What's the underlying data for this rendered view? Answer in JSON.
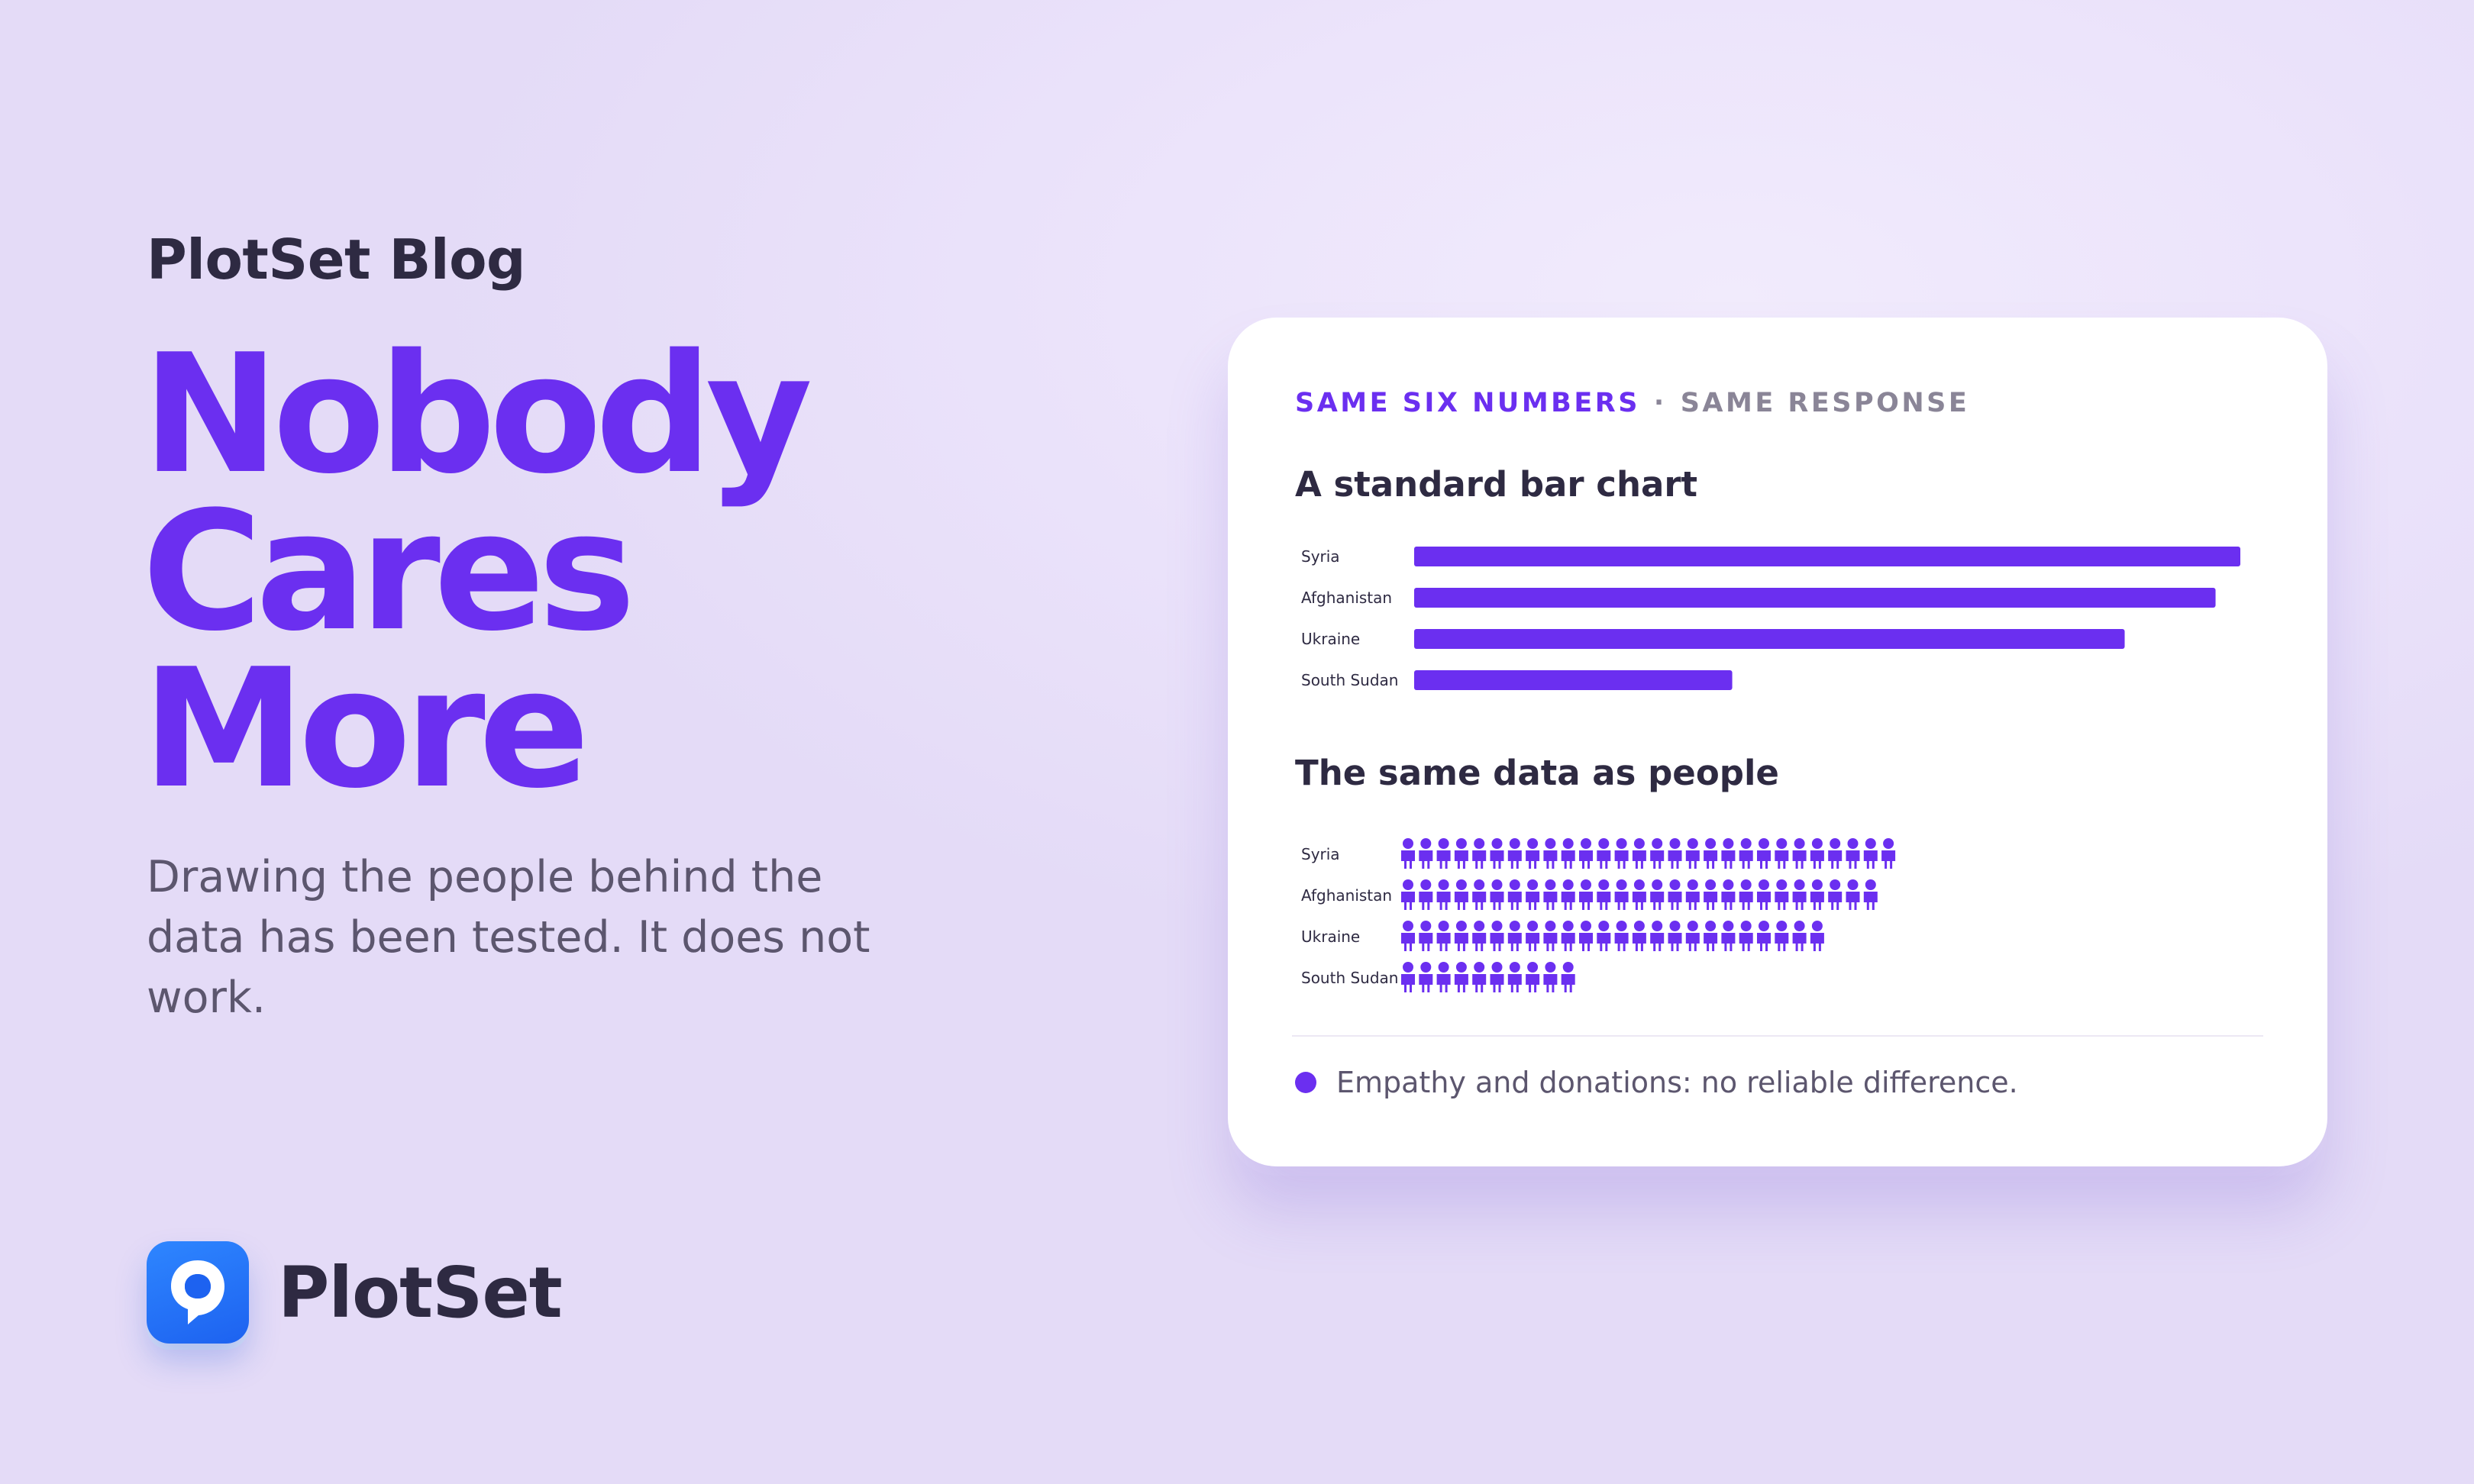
{
  "blog_label": "PlotSet Blog",
  "headline": [
    "Nobody",
    "Cares",
    "More"
  ],
  "subtitle": "Drawing the people behind the data has been tested. It does not work.",
  "brand": {
    "name": "PlotSet",
    "logo_icon": "plotset-logo-icon"
  },
  "card": {
    "eyebrow_a": "SAME SIX NUMBERS",
    "eyebrow_sep": "·",
    "eyebrow_b": "SAME RESPONSE",
    "footnote": "Empathy and donations: no reliable difference."
  },
  "colors": {
    "accent": "#6b2ff0",
    "text": "#2e2a42",
    "muted": "#5c566e",
    "brand_blue": "#1d62f0"
  },
  "chart_data": [
    {
      "type": "bar",
      "title": "A standard bar chart",
      "orientation": "horizontal",
      "categories": [
        "Syria",
        "Afghanistan",
        "Ukraine",
        "South Sudan"
      ],
      "values": [
        100,
        97,
        86,
        38.5
      ],
      "xlim": [
        0,
        100
      ],
      "grid": false
    },
    {
      "type": "pictogram",
      "title": "The same data as people",
      "categories": [
        "Syria",
        "Afghanistan",
        "Ukraine",
        "South Sudan"
      ],
      "icon": "person-icon",
      "counts": [
        28,
        27,
        24,
        10
      ]
    }
  ]
}
